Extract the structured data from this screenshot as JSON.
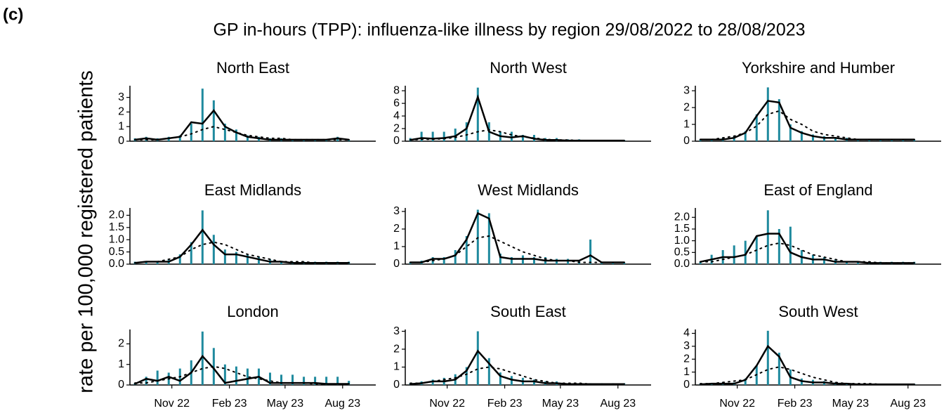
{
  "panel_label": "(c)",
  "title": "GP in-hours (TPP): influenza-like illness by region 29/08/2022 to 28/08/2023",
  "y_label": "rate per 100,000 registered patients",
  "chart_data": [
    {
      "type": "bar",
      "title": "North East",
      "x": [
        5,
        23,
        41,
        59,
        77,
        95,
        113,
        131,
        149,
        167,
        185,
        203,
        221,
        239,
        257,
        275,
        293,
        311,
        329,
        347
      ],
      "xlim": [
        -3,
        390
      ],
      "ylim": [
        0,
        3.8
      ],
      "yticks": [
        0,
        1,
        2,
        3
      ],
      "series": [
        {
          "type": "bar",
          "color": "#1f8a9e",
          "values": [
            0.2,
            0.3,
            0.2,
            0.3,
            0.4,
            1.2,
            3.6,
            2.8,
            1.2,
            0.8,
            0.4,
            0.3,
            0.2,
            0.2,
            0.1,
            0.1,
            0.1,
            0.1,
            0.3,
            0.1
          ]
        },
        {
          "type": "line",
          "color": "#000000",
          "values": [
            0.1,
            0.2,
            0.1,
            0.2,
            0.3,
            1.3,
            1.2,
            2.1,
            1.0,
            0.6,
            0.3,
            0.2,
            0.1,
            0.1,
            0.1,
            0.1,
            0.1,
            0.1,
            0.2,
            0.1
          ]
        },
        {
          "type": "line",
          "dashed": true,
          "color": "#000000",
          "values": [
            0.1,
            0.1,
            0.1,
            0.2,
            0.3,
            0.5,
            0.8,
            1.0,
            0.8,
            0.6,
            0.4,
            0.3,
            0.2,
            0.2,
            0.1,
            0.1,
            0.1,
            0.1,
            0.1,
            0.1
          ]
        }
      ]
    },
    {
      "type": "bar",
      "title": "North West",
      "x": [
        5,
        23,
        41,
        59,
        77,
        95,
        113,
        131,
        149,
        167,
        185,
        203,
        221,
        239,
        257,
        275,
        293,
        311,
        329,
        347
      ],
      "xlim": [
        -3,
        390
      ],
      "ylim": [
        0,
        8.8
      ],
      "yticks": [
        0,
        2,
        4,
        6,
        8
      ],
      "series": [
        {
          "type": "bar",
          "color": "#1f8a9e",
          "values": [
            0.5,
            1.5,
            1.5,
            1.5,
            2.0,
            3.0,
            8.5,
            3.0,
            1.5,
            1.5,
            1.0,
            1.0,
            0.5,
            0.5,
            0.3,
            0.3,
            0.2,
            0.2,
            0.2,
            0.2
          ]
        },
        {
          "type": "line",
          "color": "#000000",
          "values": [
            0.2,
            0.5,
            0.4,
            0.5,
            0.8,
            2.0,
            7.0,
            1.5,
            0.8,
            0.6,
            0.8,
            0.4,
            0.2,
            0.2,
            0.1,
            0.1,
            0.1,
            0.1,
            0.1,
            0.1
          ]
        },
        {
          "type": "line",
          "dashed": true,
          "color": "#000000",
          "values": [
            0.2,
            0.3,
            0.3,
            0.4,
            0.6,
            1.0,
            1.5,
            1.8,
            1.5,
            1.0,
            0.7,
            0.5,
            0.3,
            0.2,
            0.2,
            0.1,
            0.1,
            0.1,
            0.1,
            0.1
          ]
        }
      ]
    },
    {
      "type": "bar",
      "title": "Yorkshire and Humber",
      "x": [
        5,
        23,
        41,
        59,
        77,
        95,
        113,
        131,
        149,
        167,
        185,
        203,
        221,
        239,
        257,
        275,
        293,
        311,
        329,
        347
      ],
      "xlim": [
        -3,
        390
      ],
      "ylim": [
        0,
        3.3
      ],
      "yticks": [
        0,
        1,
        2,
        3
      ],
      "series": [
        {
          "type": "bar",
          "color": "#1f8a9e",
          "values": [
            0.1,
            0.1,
            0.2,
            0.3,
            0.6,
            1.6,
            3.2,
            2.5,
            1.0,
            0.6,
            0.4,
            0.3,
            0.2,
            0.2,
            0.1,
            0.1,
            0.1,
            0.1,
            0.1,
            0.1
          ]
        },
        {
          "type": "line",
          "color": "#000000",
          "values": [
            0.1,
            0.1,
            0.1,
            0.2,
            0.5,
            1.5,
            2.4,
            2.3,
            0.8,
            0.5,
            0.3,
            0.2,
            0.2,
            0.1,
            0.1,
            0.1,
            0.1,
            0.1,
            0.1,
            0.1
          ]
        },
        {
          "type": "line",
          "dashed": true,
          "color": "#000000",
          "values": [
            0.1,
            0.1,
            0.2,
            0.3,
            0.5,
            0.9,
            1.6,
            1.8,
            1.3,
            1.0,
            0.6,
            0.4,
            0.3,
            0.2,
            0.1,
            0.1,
            0.1,
            0.1,
            0.1,
            0.1
          ]
        }
      ]
    },
    {
      "type": "bar",
      "title": "East Midlands",
      "x": [
        5,
        23,
        41,
        59,
        77,
        95,
        113,
        131,
        149,
        167,
        185,
        203,
        221,
        239,
        257,
        275,
        293,
        311,
        329,
        347
      ],
      "xlim": [
        -3,
        390
      ],
      "ylim": [
        0,
        2.3
      ],
      "yticks": [
        {
          "value": 0,
          "label": "0.0"
        },
        {
          "value": 0.5,
          "label": "0.5"
        },
        {
          "value": 1,
          "label": "1.0"
        },
        {
          "value": 1.5,
          "label": "1.5"
        },
        {
          "value": 2,
          "label": "2.0"
        }
      ],
      "series": [
        {
          "type": "bar",
          "color": "#1f8a9e",
          "values": [
            0.1,
            0.1,
            0.1,
            0.2,
            0.4,
            0.9,
            2.2,
            1.2,
            0.6,
            0.5,
            0.4,
            0.3,
            0.2,
            0.1,
            0.1,
            0.1,
            0.1,
            0.1,
            0.1,
            0.1
          ]
        },
        {
          "type": "line",
          "color": "#000000",
          "values": [
            0.05,
            0.1,
            0.1,
            0.1,
            0.3,
            0.8,
            1.4,
            0.8,
            0.4,
            0.4,
            0.3,
            0.2,
            0.1,
            0.1,
            0.05,
            0.05,
            0.05,
            0.05,
            0.05,
            0.05
          ]
        },
        {
          "type": "line",
          "dashed": true,
          "color": "#000000",
          "values": [
            0.05,
            0.1,
            0.1,
            0.2,
            0.3,
            0.6,
            0.8,
            0.9,
            0.8,
            0.6,
            0.4,
            0.3,
            0.2,
            0.1,
            0.1,
            0.1,
            0.05,
            0.05,
            0.05,
            0.05
          ]
        }
      ]
    },
    {
      "type": "bar",
      "title": "West Midlands",
      "x": [
        5,
        23,
        41,
        59,
        77,
        95,
        113,
        131,
        149,
        167,
        185,
        203,
        221,
        239,
        257,
        275,
        293,
        311,
        329,
        347
      ],
      "xlim": [
        -3,
        390
      ],
      "ylim": [
        0,
        3.2
      ],
      "yticks": [
        0,
        1,
        2,
        3
      ],
      "series": [
        {
          "type": "bar",
          "color": "#1f8a9e",
          "values": [
            0.1,
            0.2,
            0.4,
            0.4,
            0.8,
            1.6,
            3.1,
            2.9,
            0.6,
            0.4,
            0.5,
            0.4,
            0.4,
            0.3,
            0.3,
            0.2,
            1.4,
            0.1,
            0.1,
            0.1
          ]
        },
        {
          "type": "line",
          "color": "#000000",
          "values": [
            0.1,
            0.1,
            0.3,
            0.3,
            0.5,
            1.4,
            2.9,
            2.6,
            0.4,
            0.3,
            0.3,
            0.3,
            0.2,
            0.2,
            0.2,
            0.2,
            0.5,
            0.1,
            0.1,
            0.1
          ]
        },
        {
          "type": "line",
          "dashed": true,
          "color": "#000000",
          "values": [
            0.1,
            0.1,
            0.2,
            0.3,
            0.5,
            1.0,
            1.5,
            1.6,
            1.3,
            1.0,
            0.7,
            0.5,
            0.3,
            0.2,
            0.2,
            0.1,
            0.1,
            0.1,
            0.1,
            0.1
          ]
        }
      ]
    },
    {
      "type": "bar",
      "title": "East of England",
      "x": [
        5,
        23,
        41,
        59,
        77,
        95,
        113,
        131,
        149,
        167,
        185,
        203,
        221,
        239,
        257,
        275,
        293,
        311,
        329,
        347
      ],
      "xlim": [
        -3,
        390
      ],
      "ylim": [
        0,
        2.4
      ],
      "yticks": [
        {
          "value": 0,
          "label": "0.0"
        },
        {
          "value": 0.5,
          "label": "0.5"
        },
        {
          "value": 1,
          "label": "1.0"
        },
        {
          "value": 1.5,
          "label": "1.5"
        },
        {
          "value": 2,
          "label": "2.0"
        }
      ],
      "series": [
        {
          "type": "bar",
          "color": "#1f8a9e",
          "values": [
            0.1,
            0.4,
            0.6,
            0.8,
            1.0,
            1.2,
            2.3,
            1.5,
            1.6,
            0.6,
            0.4,
            0.3,
            0.2,
            0.1,
            0.1,
            0.1,
            0.1,
            0.1,
            0.1,
            0.1
          ]
        },
        {
          "type": "line",
          "color": "#000000",
          "values": [
            0.1,
            0.2,
            0.3,
            0.3,
            0.4,
            1.2,
            1.3,
            1.3,
            0.5,
            0.3,
            0.2,
            0.2,
            0.1,
            0.1,
            0.1,
            0.05,
            0.05,
            0.05,
            0.05,
            0.05
          ]
        },
        {
          "type": "line",
          "dashed": true,
          "color": "#000000",
          "values": [
            0.1,
            0.1,
            0.2,
            0.3,
            0.4,
            0.6,
            0.8,
            0.9,
            0.8,
            0.6,
            0.4,
            0.3,
            0.2,
            0.1,
            0.1,
            0.1,
            0.05,
            0.05,
            0.05,
            0.05
          ]
        }
      ]
    },
    {
      "type": "bar",
      "title": "London",
      "x": [
        5,
        23,
        41,
        59,
        77,
        95,
        113,
        131,
        149,
        167,
        185,
        203,
        221,
        239,
        257,
        275,
        293,
        311,
        329,
        347
      ],
      "xlim": [
        -3,
        390
      ],
      "ylim": [
        0,
        2.7
      ],
      "yticks": [
        0,
        1,
        2
      ],
      "xticks": [
        {
          "value": 64,
          "label": "Nov 22"
        },
        {
          "value": 156,
          "label": "Feb 23"
        },
        {
          "value": 245,
          "label": "May 23"
        },
        {
          "value": 337,
          "label": "Aug 23"
        }
      ],
      "series": [
        {
          "type": "bar",
          "color": "#1f8a9e",
          "values": [
            0.1,
            0.4,
            0.7,
            0.6,
            0.8,
            1.2,
            2.6,
            1.8,
            1.0,
            0.9,
            0.8,
            0.8,
            0.6,
            0.5,
            0.5,
            0.4,
            0.4,
            0.4,
            0.4,
            0.2
          ]
        },
        {
          "type": "line",
          "color": "#000000",
          "values": [
            0.05,
            0.3,
            0.2,
            0.4,
            0.2,
            0.6,
            1.4,
            0.8,
            0.1,
            0.2,
            0.3,
            0.4,
            0.1,
            0.1,
            0.1,
            0.1,
            0.1,
            0.05,
            0.05,
            0.05
          ]
        },
        {
          "type": "line",
          "dashed": true,
          "color": "#000000",
          "values": [
            0.1,
            0.1,
            0.2,
            0.3,
            0.4,
            0.6,
            0.8,
            0.9,
            0.8,
            0.6,
            0.4,
            0.3,
            0.2,
            0.1,
            0.1,
            0.1,
            0.05,
            0.05,
            0.05,
            0.05
          ]
        }
      ]
    },
    {
      "type": "bar",
      "title": "South East",
      "x": [
        5,
        23,
        41,
        59,
        77,
        95,
        113,
        131,
        149,
        167,
        185,
        203,
        221,
        239,
        257,
        275,
        293,
        311,
        329,
        347
      ],
      "xlim": [
        -3,
        390
      ],
      "ylim": [
        0,
        3.1
      ],
      "yticks": [
        0,
        1,
        2,
        3
      ],
      "xticks": [
        {
          "value": 64,
          "label": "Nov 22"
        },
        {
          "value": 156,
          "label": "Feb 23"
        },
        {
          "value": 245,
          "label": "May 23"
        },
        {
          "value": 337,
          "label": "Aug 23"
        }
      ],
      "series": [
        {
          "type": "bar",
          "color": "#1f8a9e",
          "values": [
            0.1,
            0.2,
            0.3,
            0.4,
            0.6,
            1.0,
            3.0,
            1.5,
            0.7,
            0.5,
            0.4,
            0.3,
            0.2,
            0.2,
            0.1,
            0.1,
            0.1,
            0.1,
            0.1,
            0.1
          ]
        },
        {
          "type": "line",
          "color": "#000000",
          "values": [
            0.05,
            0.1,
            0.2,
            0.2,
            0.3,
            0.8,
            1.9,
            1.2,
            0.5,
            0.3,
            0.2,
            0.2,
            0.1,
            0.1,
            0.05,
            0.05,
            0.05,
            0.05,
            0.05,
            0.05
          ]
        },
        {
          "type": "line",
          "dashed": true,
          "color": "#000000",
          "values": [
            0.1,
            0.1,
            0.2,
            0.3,
            0.4,
            0.6,
            0.9,
            1.0,
            0.9,
            0.7,
            0.5,
            0.3,
            0.2,
            0.1,
            0.1,
            0.1,
            0.05,
            0.05,
            0.05,
            0.05
          ]
        }
      ]
    },
    {
      "type": "bar",
      "title": "South West",
      "x": [
        5,
        23,
        41,
        59,
        77,
        95,
        113,
        131,
        149,
        167,
        185,
        203,
        221,
        239,
        257,
        275,
        293,
        311,
        329,
        347
      ],
      "xlim": [
        -3,
        390
      ],
      "ylim": [
        0,
        4.3
      ],
      "yticks": [
        0,
        1,
        2,
        3,
        4
      ],
      "xticks": [
        {
          "value": 64,
          "label": "Nov 22"
        },
        {
          "value": 156,
          "label": "Feb 23"
        },
        {
          "value": 245,
          "label": "May 23"
        },
        {
          "value": 337,
          "label": "Aug 23"
        }
      ],
      "series": [
        {
          "type": "bar",
          "color": "#1f8a9e",
          "values": [
            0.1,
            0.1,
            0.2,
            0.2,
            0.5,
            1.5,
            4.2,
            2.5,
            1.2,
            0.5,
            0.4,
            0.3,
            0.2,
            0.1,
            0.1,
            0.1,
            0.1,
            0.1,
            0.1,
            0.1
          ]
        },
        {
          "type": "line",
          "color": "#000000",
          "values": [
            0.05,
            0.1,
            0.1,
            0.1,
            0.4,
            1.5,
            3.0,
            2.2,
            0.6,
            0.3,
            0.2,
            0.2,
            0.1,
            0.1,
            0.05,
            0.05,
            0.05,
            0.05,
            0.05,
            0.05
          ]
        },
        {
          "type": "line",
          "dashed": true,
          "color": "#000000",
          "values": [
            0.1,
            0.1,
            0.2,
            0.3,
            0.4,
            0.8,
            1.2,
            1.4,
            1.2,
            0.9,
            0.6,
            0.4,
            0.2,
            0.1,
            0.1,
            0.1,
            0.05,
            0.05,
            0.05,
            0.05
          ]
        }
      ]
    }
  ]
}
